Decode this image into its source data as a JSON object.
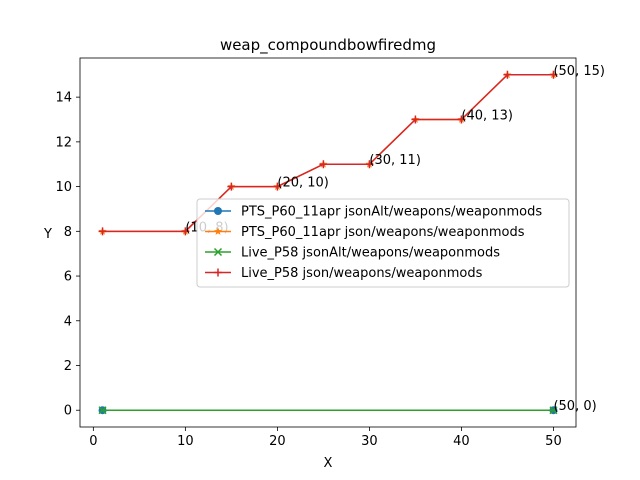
{
  "chart_data": {
    "type": "line",
    "title": "weap_compoundbowfiredmg",
    "xlabel": "X",
    "ylabel": "Y",
    "xlim": [
      -1.45,
      52.45
    ],
    "ylim": [
      -0.75,
      15.75
    ],
    "xticks": [
      0,
      10,
      20,
      30,
      40,
      50
    ],
    "yticks": [
      0,
      2,
      4,
      6,
      8,
      10,
      12,
      14
    ],
    "legend_position": "center-right",
    "series": [
      {
        "name": "PTS_P60_11apr jsonAlt/weapons/weaponmods",
        "color": "#1f77b4",
        "marker": "circle",
        "x": [
          1,
          50
        ],
        "y": [
          0,
          0
        ]
      },
      {
        "name": "PTS_P60_11apr json/weapons/weaponmods",
        "color": "#ff7f0e",
        "marker": "star",
        "x": [
          1,
          10,
          15,
          20,
          25,
          30,
          35,
          40,
          45,
          50
        ],
        "y": [
          8,
          8,
          10,
          10,
          11,
          11,
          13,
          13,
          15,
          15
        ]
      },
      {
        "name": "Live_P58 jsonAlt/weapons/weaponmods",
        "color": "#2ca02c",
        "marker": "x",
        "x": [
          1,
          50
        ],
        "y": [
          0,
          0
        ]
      },
      {
        "name": "Live_P58 json/weapons/weaponmods",
        "color": "#d62728",
        "marker": "plus",
        "x": [
          1,
          10,
          15,
          20,
          25,
          30,
          35,
          40,
          45,
          50
        ],
        "y": [
          8,
          8,
          10,
          10,
          11,
          11,
          13,
          13,
          15,
          15
        ]
      }
    ],
    "annotations": [
      {
        "text": "(10, 8)",
        "x": 10,
        "y": 8
      },
      {
        "text": "(20, 10)",
        "x": 20,
        "y": 10
      },
      {
        "text": "(30, 11)",
        "x": 30,
        "y": 11
      },
      {
        "text": "(40, 13)",
        "x": 40,
        "y": 13
      },
      {
        "text": "(50, 15)",
        "x": 50,
        "y": 15
      },
      {
        "text": "(50, 0)",
        "x": 50,
        "y": 0
      }
    ]
  }
}
